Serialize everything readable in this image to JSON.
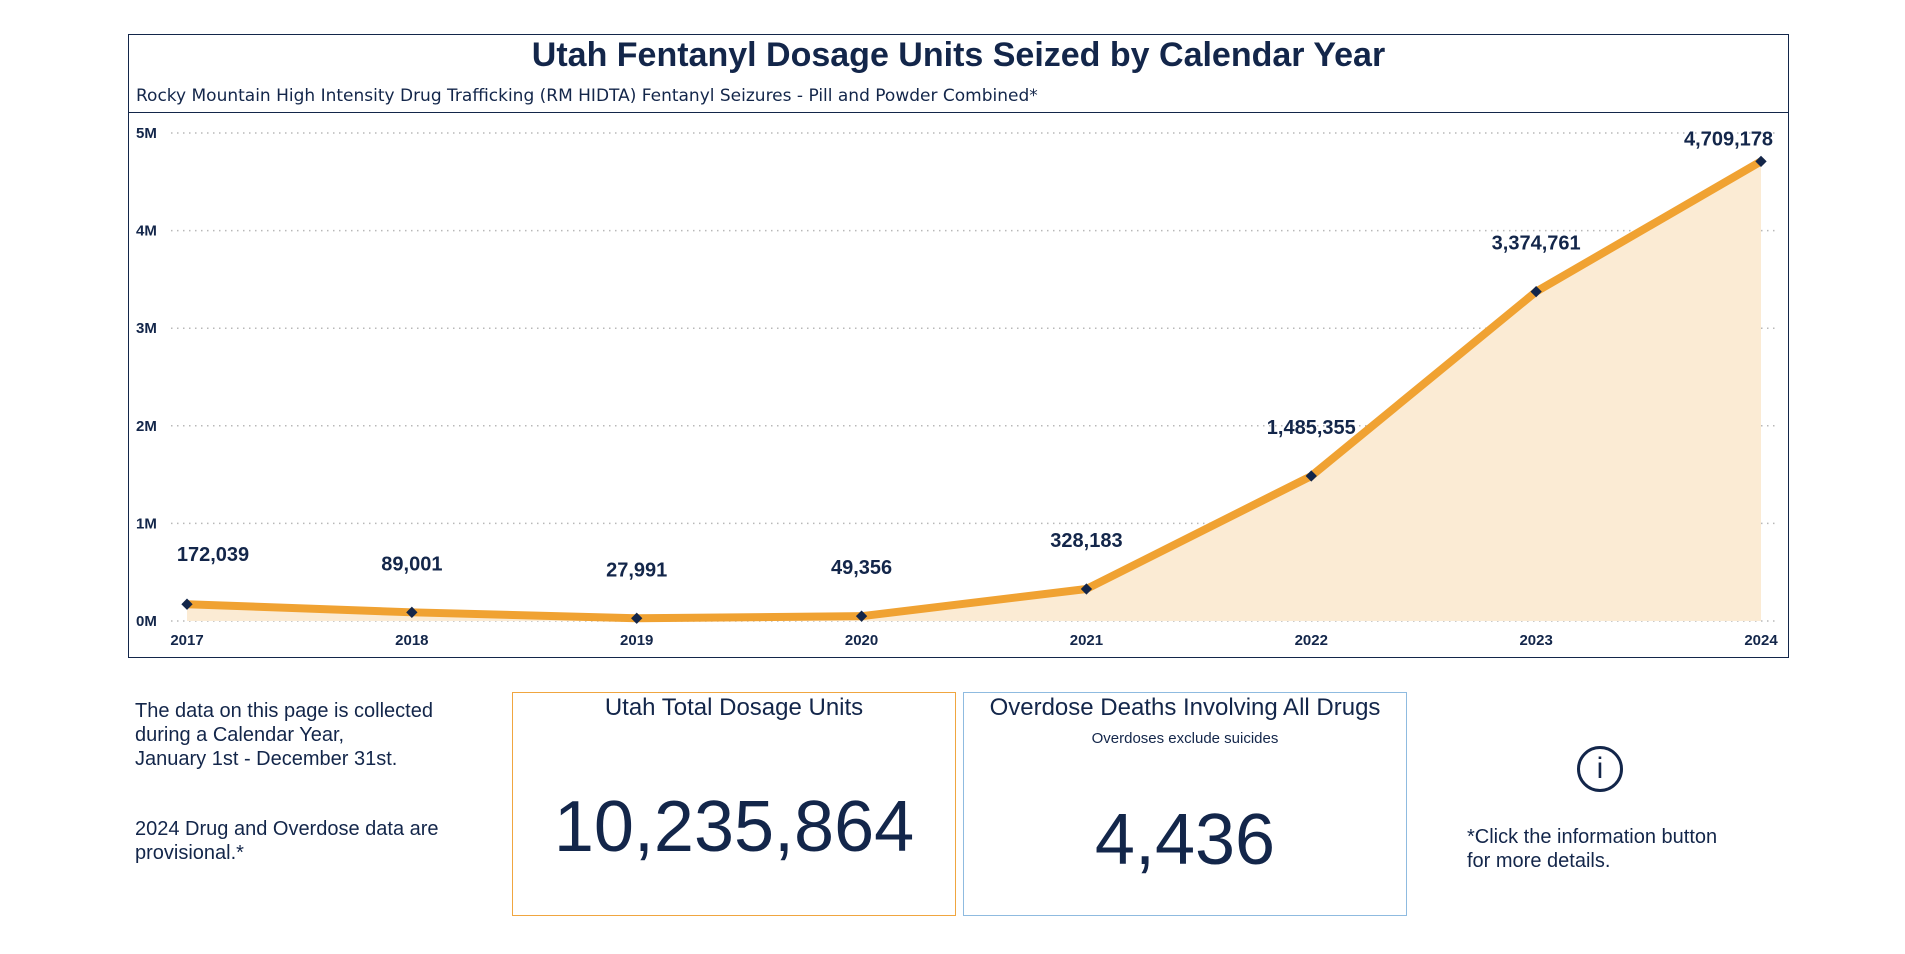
{
  "chart_data": {
    "type": "area",
    "title": "Utah Fentanyl Dosage Units Seized by Calendar Year",
    "subtitle": "Rocky Mountain High Intensity Drug Trafficking (RM HIDTA) Fentanyl Seizures - Pill and Powder Combined*",
    "x": [
      "2017",
      "2018",
      "2019",
      "2020",
      "2021",
      "2022",
      "2023",
      "2024"
    ],
    "values": [
      172039,
      89001,
      27991,
      49356,
      328183,
      1485355,
      3374761,
      4709178
    ],
    "data_labels": [
      "172,039",
      "89,001",
      "27,991",
      "49,356",
      "328,183",
      "1,485,355",
      "3,374,761",
      "4,709,178"
    ],
    "y_ticks": [
      0,
      1000000,
      2000000,
      3000000,
      4000000,
      5000000
    ],
    "y_tick_labels": [
      "0M",
      "1M",
      "2M",
      "3M",
      "4M",
      "5M"
    ],
    "ylim": [
      0,
      5000000
    ],
    "grid": "horizontal dotted",
    "line_color": "#f0a232",
    "area_fill": "#fbebd4",
    "marker_color": "#13264a"
  },
  "notes": {
    "calendar_lines": [
      "The data on this page is collected",
      "during a Calendar Year,",
      "January 1st - December 31st."
    ],
    "provisional_lines": [
      "2024 Drug and Overdose data are",
      "provisional.*"
    ]
  },
  "kpi_dosage": {
    "title": "Utah Total Dosage Units",
    "value": "10,235,864",
    "border_color": "#f0a640"
  },
  "kpi_deaths": {
    "title": "Overdose Deaths Involving All Drugs",
    "subtitle": "Overdoses exclude suicides",
    "value": "4,436",
    "border_color": "#8fbbe0"
  },
  "info": {
    "icon_glyph": "i",
    "icon": "info-icon",
    "note_lines": [
      "*Click the information button",
      "for more details."
    ]
  }
}
